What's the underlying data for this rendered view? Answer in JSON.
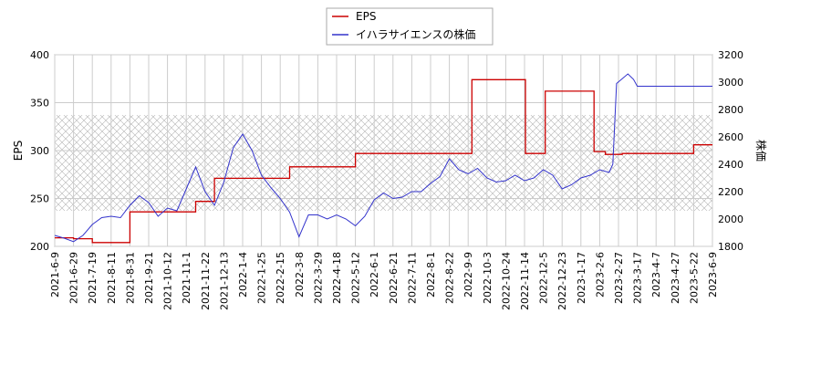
{
  "chart_data": {
    "type": "line",
    "legend_position": "top-center",
    "grid": true,
    "hatched_band": {
      "axis": "right",
      "from": 2060,
      "to": 2760
    },
    "left_axis": {
      "label": "EPS",
      "ticks": [
        200,
        250,
        300,
        350,
        400
      ],
      "range": [
        200,
        400
      ]
    },
    "right_axis": {
      "label": "株価",
      "ticks": [
        1800,
        2000,
        2200,
        2400,
        2600,
        2800,
        3000,
        3200
      ],
      "range": [
        1800,
        3200
      ]
    },
    "x_ticks": [
      "2021-6-9",
      "2021-6-29",
      "2021-7-19",
      "2021-8-11",
      "2021-8-31",
      "2021-9-21",
      "2021-10-12",
      "2021-11-1",
      "2021-11-22",
      "2021-12-13",
      "2022-1-4",
      "2022-1-25",
      "2022-2-15",
      "2022-3-8",
      "2022-3-29",
      "2022-4-18",
      "2022-5-12",
      "2022-6-1",
      "2022-6-21",
      "2022-7-11",
      "2022-8-1",
      "2022-8-22",
      "2022-9-9",
      "2022-10-3",
      "2022-10-24",
      "2022-11-14",
      "2022-12-5",
      "2022-12-23",
      "2023-1-17",
      "2023-2-6",
      "2023-2-27",
      "2023-3-17",
      "2023-4-7",
      "2023-4-27",
      "2023-5-22",
      "2023-6-9"
    ],
    "series": [
      {
        "name": "EPS",
        "axis": "left",
        "color": "#cc0000",
        "step": true,
        "points": [
          [
            0,
            209
          ],
          [
            1,
            208
          ],
          [
            2,
            204
          ],
          [
            4,
            236
          ],
          [
            7,
            236
          ],
          [
            7.5,
            247
          ],
          [
            8.5,
            271
          ],
          [
            12.5,
            283
          ],
          [
            16,
            297
          ],
          [
            21,
            297
          ],
          [
            22.2,
            374
          ],
          [
            24.9,
            374
          ],
          [
            25.05,
            297
          ],
          [
            26.1,
            362
          ],
          [
            28.55,
            362
          ],
          [
            28.7,
            299
          ],
          [
            29.3,
            296
          ],
          [
            30.2,
            297
          ],
          [
            34,
            306
          ],
          [
            35,
            306
          ]
        ]
      },
      {
        "name": "イハラサイエンスの株価",
        "axis": "right",
        "color": "#3333cc",
        "step": false,
        "points": [
          [
            0,
            1880
          ],
          [
            0.5,
            1860
          ],
          [
            1,
            1835
          ],
          [
            1.5,
            1880
          ],
          [
            2,
            1960
          ],
          [
            2.5,
            2010
          ],
          [
            3,
            2020
          ],
          [
            3.5,
            2010
          ],
          [
            4,
            2100
          ],
          [
            4.5,
            2170
          ],
          [
            5,
            2120
          ],
          [
            5.5,
            2020
          ],
          [
            6,
            2080
          ],
          [
            6.5,
            2060
          ],
          [
            7,
            2220
          ],
          [
            7.5,
            2380
          ],
          [
            8,
            2200
          ],
          [
            8.5,
            2100
          ],
          [
            9,
            2270
          ],
          [
            9.5,
            2520
          ],
          [
            10,
            2620
          ],
          [
            10.5,
            2500
          ],
          [
            11,
            2320
          ],
          [
            11.5,
            2230
          ],
          [
            12,
            2150
          ],
          [
            12.5,
            2050
          ],
          [
            13,
            1870
          ],
          [
            13.5,
            2030
          ],
          [
            14,
            2030
          ],
          [
            14.5,
            2000
          ],
          [
            15,
            2030
          ],
          [
            15.5,
            2000
          ],
          [
            16,
            1950
          ],
          [
            16.5,
            2020
          ],
          [
            17,
            2140
          ],
          [
            17.5,
            2190
          ],
          [
            18,
            2150
          ],
          [
            18.5,
            2160
          ],
          [
            19,
            2200
          ],
          [
            19.5,
            2200
          ],
          [
            20,
            2260
          ],
          [
            20.5,
            2310
          ],
          [
            21,
            2440
          ],
          [
            21.5,
            2360
          ],
          [
            22,
            2330
          ],
          [
            22.5,
            2370
          ],
          [
            23,
            2300
          ],
          [
            23.5,
            2270
          ],
          [
            24,
            2280
          ],
          [
            24.5,
            2320
          ],
          [
            25,
            2280
          ],
          [
            25.5,
            2300
          ],
          [
            26,
            2360
          ],
          [
            26.5,
            2320
          ],
          [
            27,
            2220
          ],
          [
            27.5,
            2250
          ],
          [
            28,
            2300
          ],
          [
            28.5,
            2320
          ],
          [
            29,
            2360
          ],
          [
            29.5,
            2340
          ],
          [
            29.7,
            2400
          ],
          [
            29.9,
            2990
          ],
          [
            30.5,
            3060
          ],
          [
            30.8,
            3020
          ],
          [
            31,
            2970
          ],
          [
            35,
            2970
          ]
        ]
      }
    ]
  }
}
